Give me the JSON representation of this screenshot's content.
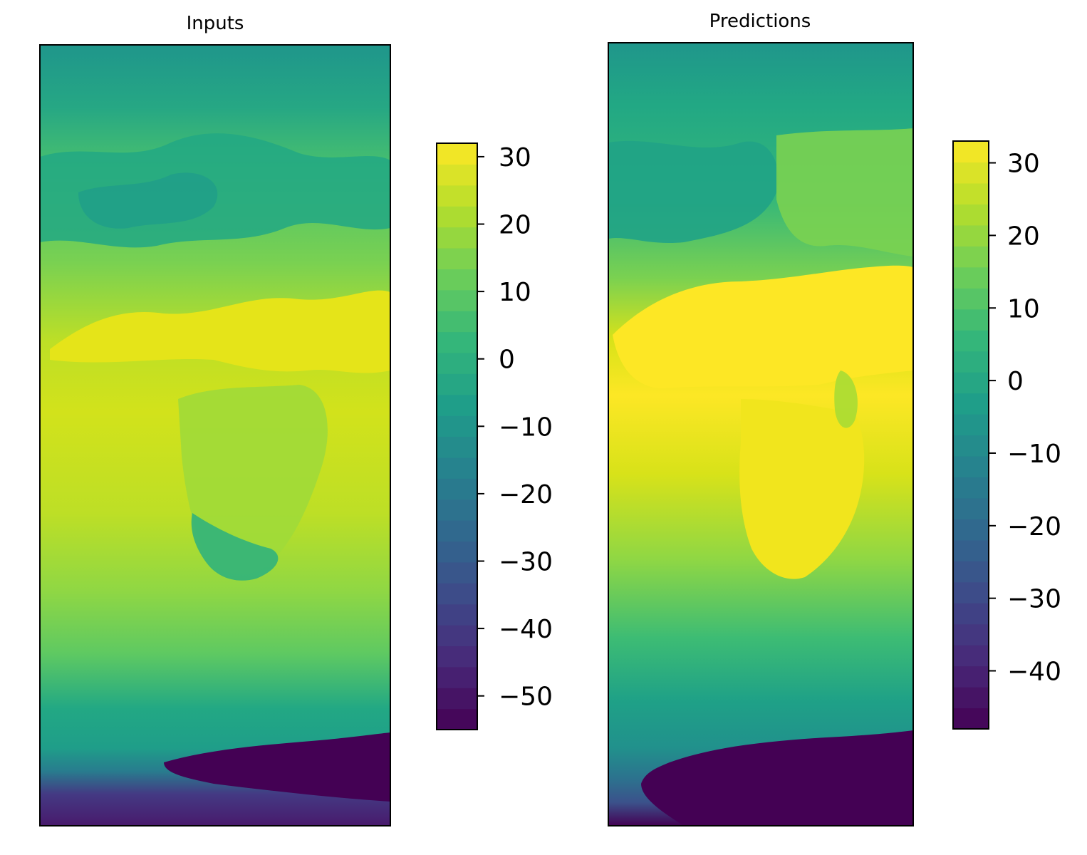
{
  "chart_data": [
    {
      "type": "heatmap",
      "title": "Inputs",
      "colormap": "viridis",
      "colorbar": {
        "range": [
          -55,
          32
        ],
        "levels": 28,
        "ticks": [
          30,
          20,
          10,
          0,
          -10,
          -20,
          -30,
          -40,
          -50
        ],
        "tick_labels": [
          "30",
          "20",
          "10",
          "0",
          "−10",
          "−20",
          "−30",
          "−40",
          "−50"
        ]
      },
      "axes_ticks": false
    },
    {
      "type": "heatmap",
      "title": "Predictions",
      "colormap": "viridis",
      "colorbar": {
        "range": [
          -48,
          33
        ],
        "levels": 28,
        "ticks": [
          30,
          20,
          10,
          0,
          -10,
          -20,
          -30,
          -40
        ],
        "tick_labels": [
          "30",
          "20",
          "10",
          "0",
          "−10",
          "−20",
          "−30",
          "−40"
        ]
      },
      "axes_ticks": false
    }
  ]
}
